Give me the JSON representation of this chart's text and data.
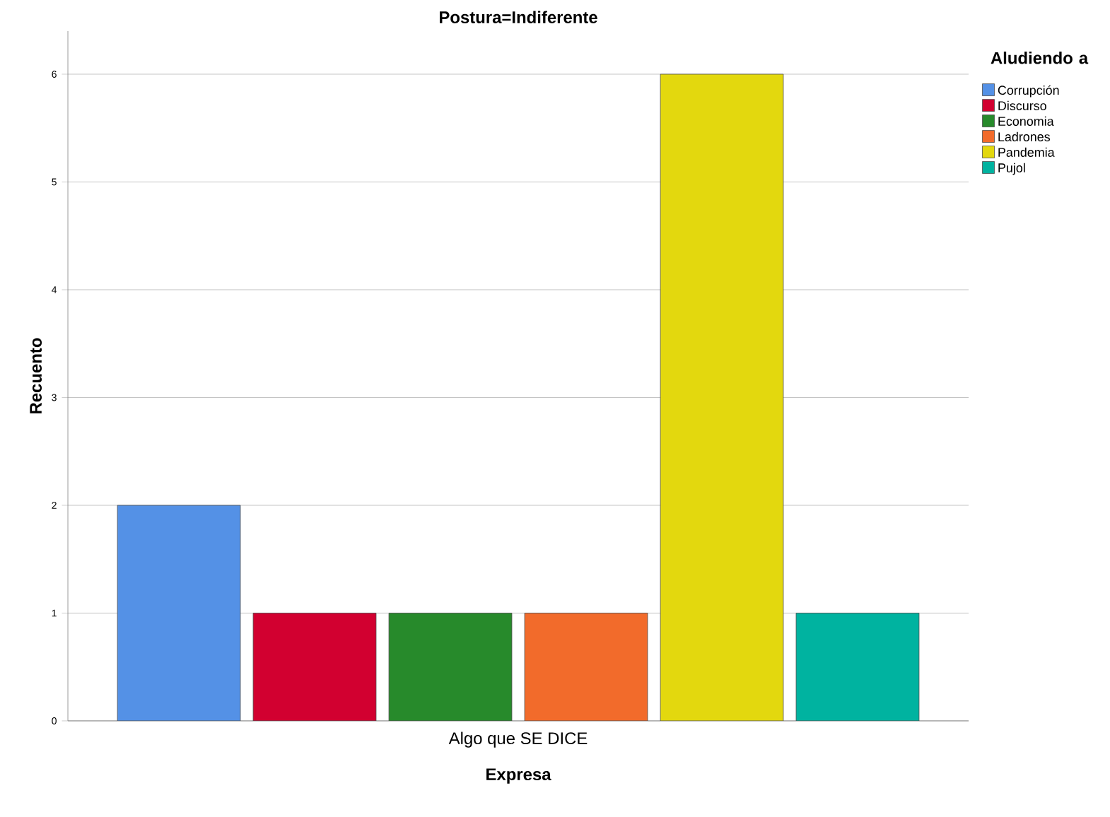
{
  "chart_data": {
    "type": "bar",
    "title": "Postura=Indiferente",
    "xlabel": "Expresa",
    "ylabel": "Recuento",
    "legend_title": "Aludiendo a",
    "categories": [
      "Algo que SE DICE"
    ],
    "series": [
      {
        "name": "Corrupción",
        "color": "#5491e6",
        "values": [
          2
        ]
      },
      {
        "name": "Discurso",
        "color": "#d20030",
        "values": [
          1
        ]
      },
      {
        "name": "Economia",
        "color": "#278a2b",
        "values": [
          1
        ]
      },
      {
        "name": "Ladrones",
        "color": "#f26b2b",
        "values": [
          1
        ]
      },
      {
        "name": "Pandemia",
        "color": "#e3d80e",
        "values": [
          6
        ]
      },
      {
        "name": "Pujol",
        "color": "#00b3a0",
        "values": [
          1
        ]
      }
    ],
    "ylim": [
      0,
      6.4
    ],
    "yticks": [
      0,
      1,
      2,
      3,
      4,
      5,
      6
    ],
    "grid": "y",
    "legend": "top right"
  }
}
